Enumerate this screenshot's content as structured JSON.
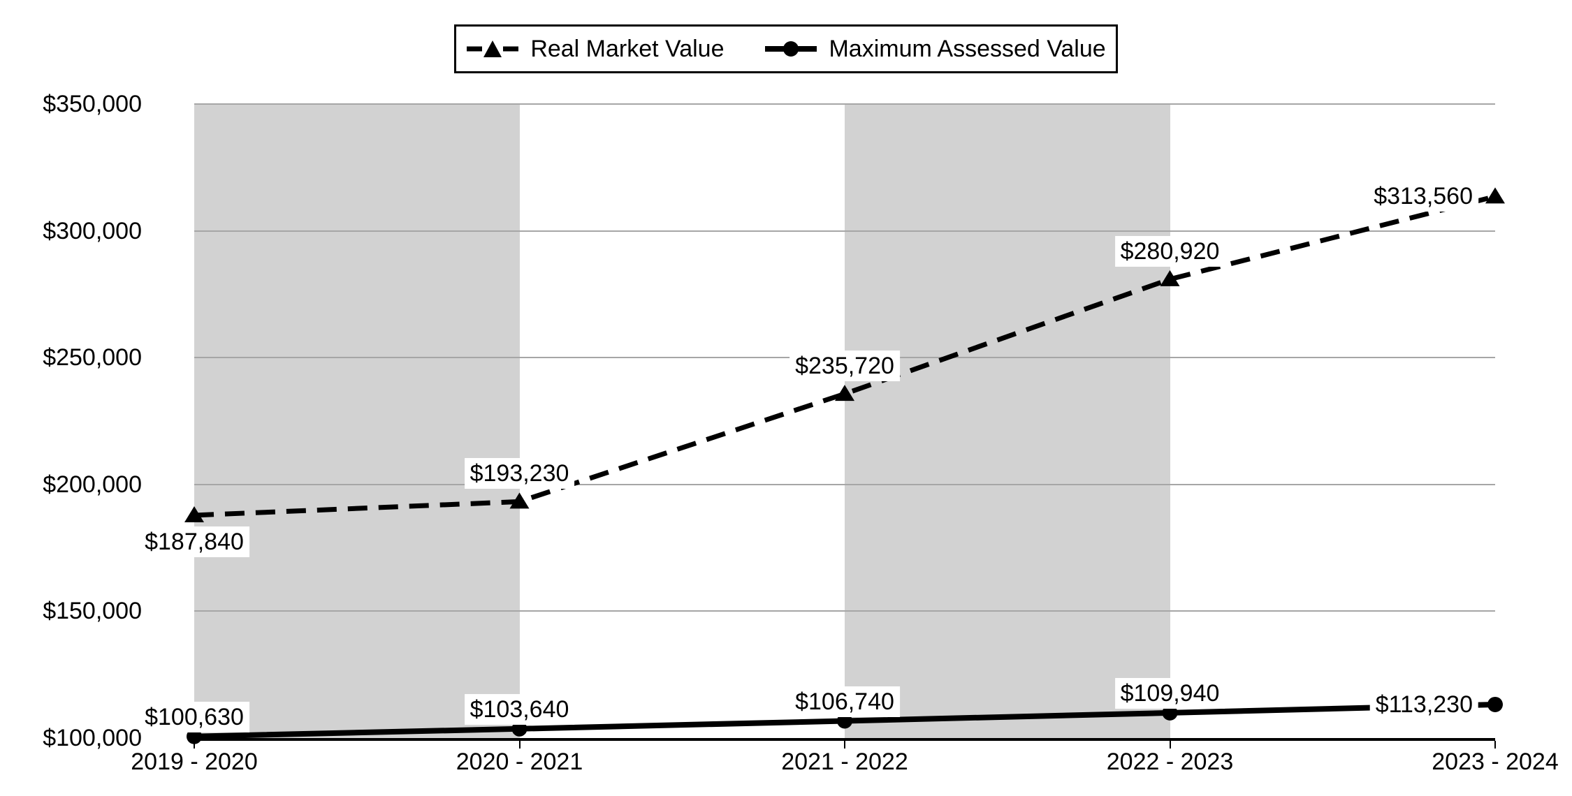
{
  "chart_data": {
    "type": "line",
    "title": "",
    "categories": [
      "2019 - 2020",
      "2020 - 2021",
      "2021 - 2022",
      "2022 - 2023",
      "2023 - 2024"
    ],
    "series": [
      {
        "name": "Real Market Value",
        "line_style": "dashed",
        "marker": "triangle",
        "values": [
          187840,
          193230,
          235720,
          280920,
          313560
        ],
        "data_labels": [
          "$187,840",
          "$193,230",
          "$235,720",
          "$280,920",
          "$313,560"
        ],
        "label_positions": [
          "below",
          "above",
          "above",
          "above",
          "left"
        ]
      },
      {
        "name": "Maximum Assessed Value",
        "line_style": "solid",
        "marker": "circle",
        "values": [
          100630,
          103640,
          106740,
          109940,
          113230
        ],
        "data_labels": [
          "$100,630",
          "$103,640",
          "$106,740",
          "$109,940",
          "$113,230"
        ],
        "label_positions": [
          "above",
          "above",
          "above",
          "above",
          "left"
        ]
      }
    ],
    "y_axis": {
      "min": 100000,
      "max": 350000,
      "step": 50000,
      "tick_labels": [
        "$100,000",
        "$150,000",
        "$200,000",
        "$250,000",
        "$300,000",
        "$350,000"
      ]
    },
    "x_axis": {
      "tick_labels": [
        "2019 - 2020",
        "2020 - 2021",
        "2021 - 2022",
        "2022 - 2023",
        "2023 - 2024"
      ]
    },
    "legend": {
      "position": "top"
    },
    "grid": true,
    "shaded_band_pairs": [
      [
        0,
        1
      ],
      [
        2,
        3
      ]
    ],
    "colors": {
      "series": "#000000",
      "band": "#d2d2d2",
      "gridline": "#a6a6a6",
      "label_background": "#ffffff"
    }
  }
}
